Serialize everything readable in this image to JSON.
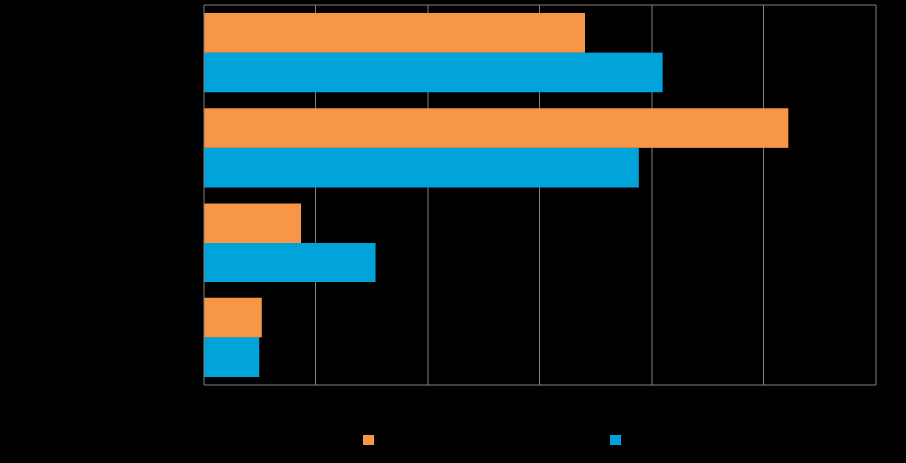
{
  "chart_data": {
    "type": "bar",
    "orientation": "horizontal",
    "title": "",
    "xlabel": "",
    "ylabel": "",
    "categories": [
      "",
      "",
      "",
      ""
    ],
    "xlim": [
      0,
      6
    ],
    "x_ticks": [
      0,
      1,
      2,
      3,
      4,
      5,
      6
    ],
    "grid": true,
    "legend_position": "bottom",
    "series": [
      {
        "color": "#F79646",
        "values": [
          3.4,
          5.22,
          0.87,
          0.52
        ]
      },
      {
        "color": "#00A3DA",
        "values": [
          4.1,
          3.88,
          1.53,
          0.5
        ]
      }
    ]
  },
  "colors": {
    "background": "#000000",
    "grid": "#7f7f7f",
    "axis": "#7f7f7f"
  }
}
